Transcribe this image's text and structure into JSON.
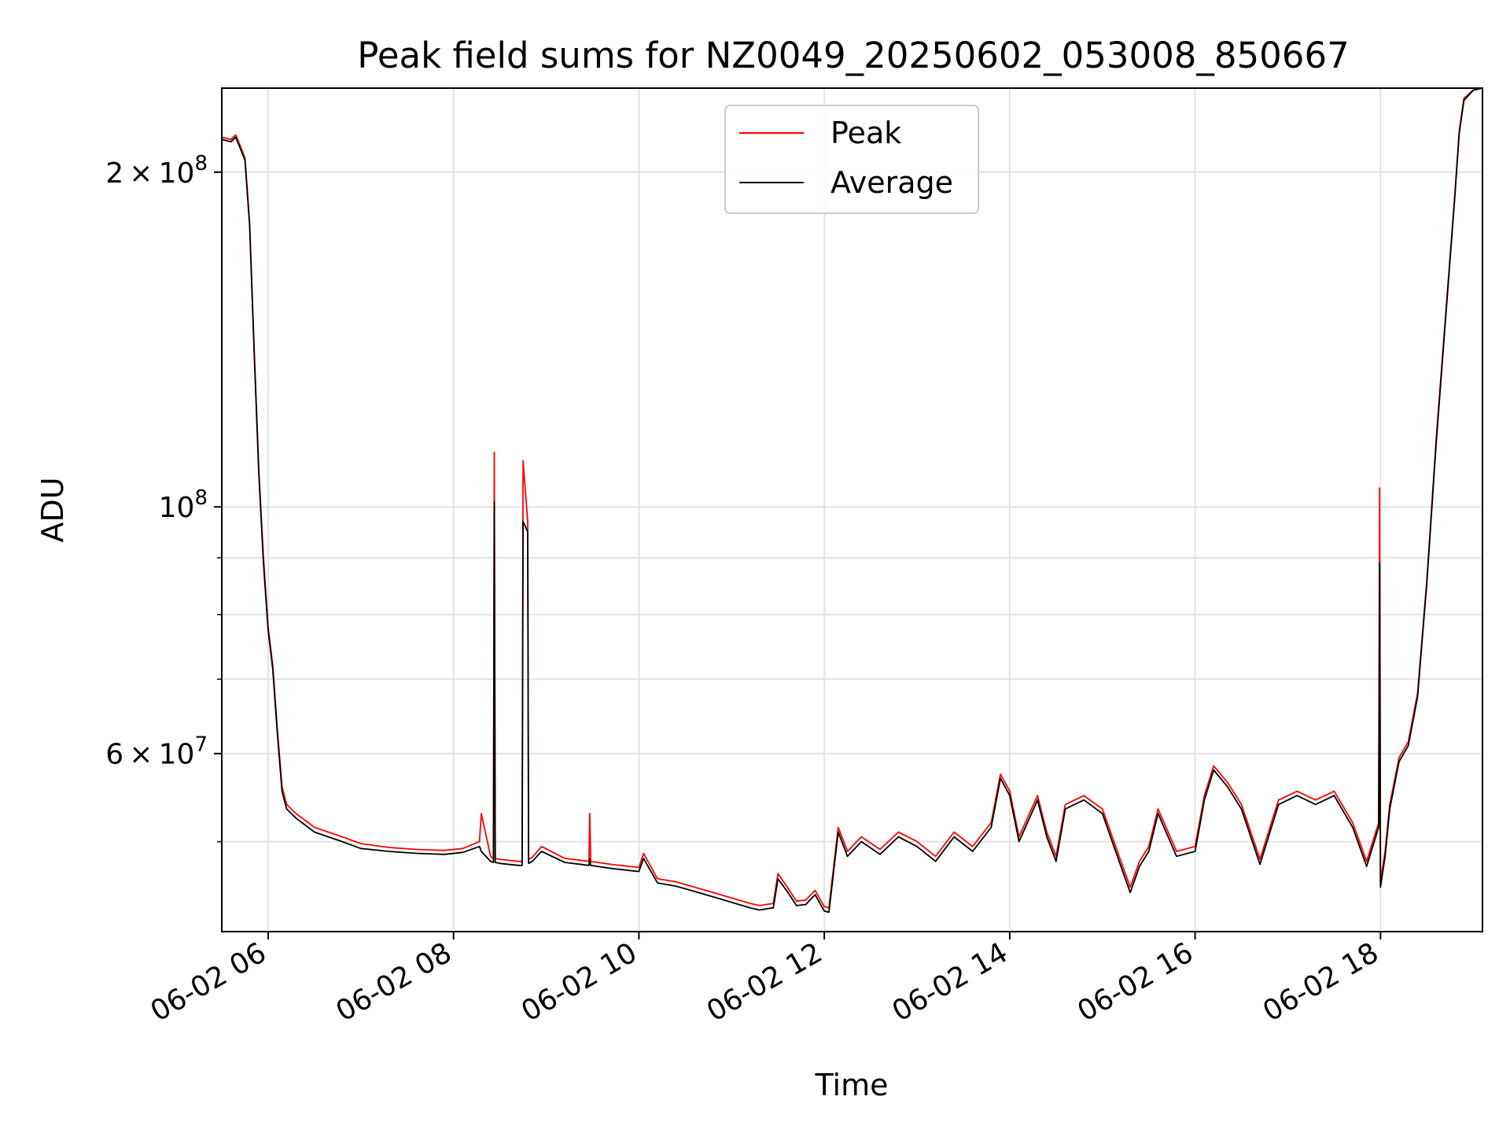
{
  "chart_data": {
    "type": "line",
    "title": "Peak field sums for NZ0049_20250602_053008_850667",
    "xlabel": "Time",
    "ylabel": "ADU",
    "x_unit": "hours (2025-06-02)",
    "xlim": [
      5.5,
      19.1
    ],
    "ylim": [
      41500000,
      238000000
    ],
    "yscale": "log",
    "grid": true,
    "legend_position": "top-center",
    "x_tick_values": [
      6,
      8,
      10,
      12,
      14,
      16,
      18
    ],
    "x_tick_labels": [
      "06-02 06",
      "06-02 08",
      "06-02 10",
      "06-02 12",
      "06-02 14",
      "06-02 16",
      "06-02 18"
    ],
    "y_major_ticks": [
      {
        "value": 200000000,
        "mantissa": "2",
        "exponent": "8"
      },
      {
        "value": 100000000,
        "mantissa": "",
        "exponent": "8"
      },
      {
        "value": 60000000,
        "mantissa": "6",
        "exponent": "7"
      }
    ],
    "y_minor_ticks": [
      50000000,
      70000000,
      80000000,
      90000000
    ],
    "series": [
      {
        "name": "Peak",
        "color": "#ff0000",
        "x": [
          5.5,
          5.6,
          5.65,
          5.7,
          5.75,
          5.8,
          5.85,
          5.9,
          5.95,
          6.0,
          6.05,
          6.1,
          6.15,
          6.2,
          6.25,
          6.3,
          6.5,
          6.8,
          7.0,
          7.3,
          7.6,
          7.9,
          8.1,
          8.28,
          8.3,
          8.4,
          8.43,
          8.44,
          8.45,
          8.5,
          8.7,
          8.74,
          8.75,
          8.8,
          8.81,
          8.85,
          8.95,
          9.2,
          9.46,
          9.47,
          9.48,
          9.7,
          9.9,
          10.0,
          10.05,
          10.2,
          10.4,
          10.6,
          10.8,
          11.0,
          11.2,
          11.3,
          11.45,
          11.5,
          11.6,
          11.7,
          11.8,
          11.9,
          12.0,
          12.05,
          12.15,
          12.25,
          12.4,
          12.6,
          12.8,
          13.0,
          13.2,
          13.4,
          13.6,
          13.8,
          13.9,
          14.0,
          14.1,
          14.3,
          14.4,
          14.5,
          14.6,
          14.8,
          15.0,
          15.2,
          15.3,
          15.4,
          15.5,
          15.6,
          15.8,
          16.0,
          16.1,
          16.2,
          16.35,
          16.5,
          16.7,
          16.9,
          17.1,
          17.3,
          17.5,
          17.7,
          17.85,
          17.98,
          17.99,
          18.0,
          18.05,
          18.1,
          18.2,
          18.3,
          18.4,
          18.5,
          18.6,
          18.7,
          18.8,
          18.85,
          18.9,
          19.0,
          19.1
        ],
        "y": [
          215000000,
          214000000,
          216000000,
          211000000,
          206000000,
          180000000,
          138000000,
          108000000,
          90000000,
          78000000,
          72000000,
          63000000,
          56000000,
          54000000,
          53500000,
          53000000,
          51500000,
          50500000,
          49800000,
          49400000,
          49200000,
          49100000,
          49300000,
          50000000,
          53000000,
          48500000,
          48300000,
          112000000,
          48300000,
          48200000,
          48000000,
          48000000,
          110000000,
          97000000,
          48200000,
          48400000,
          49500000,
          48300000,
          48000000,
          53000000,
          48000000,
          47700000,
          47500000,
          47400000,
          48800000,
          46300000,
          46000000,
          45500000,
          45000000,
          44500000,
          44000000,
          43800000,
          44000000,
          46800000,
          45500000,
          44200000,
          44300000,
          45200000,
          43700000,
          43600000,
          51500000,
          49000000,
          50500000,
          49200000,
          51000000,
          50000000,
          48500000,
          51000000,
          49500000,
          52000000,
          57500000,
          55500000,
          50500000,
          55000000,
          51000000,
          48500000,
          54000000,
          55000000,
          53500000,
          48000000,
          45500000,
          48000000,
          49500000,
          53500000,
          49000000,
          49500000,
          55000000,
          58500000,
          56500000,
          54000000,
          48200000,
          54500000,
          55500000,
          54500000,
          55500000,
          52000000,
          48000000,
          52000000,
          104000000,
          46000000,
          49000000,
          54000000,
          59500000,
          61500000,
          68000000,
          86000000,
          115000000,
          148000000,
          190000000,
          218000000,
          233000000,
          237000000,
          238000000
        ]
      },
      {
        "name": "Average",
        "color": "#000000",
        "x": [
          5.5,
          5.6,
          5.65,
          5.7,
          5.75,
          5.8,
          5.85,
          5.9,
          5.95,
          6.0,
          6.05,
          6.1,
          6.15,
          6.2,
          6.25,
          6.3,
          6.5,
          6.8,
          7.0,
          7.3,
          7.6,
          7.9,
          8.1,
          8.28,
          8.3,
          8.4,
          8.43,
          8.44,
          8.45,
          8.5,
          8.7,
          8.74,
          8.75,
          8.8,
          8.81,
          8.85,
          8.95,
          9.2,
          9.46,
          9.47,
          9.48,
          9.7,
          9.9,
          10.0,
          10.05,
          10.2,
          10.4,
          10.6,
          10.8,
          11.0,
          11.2,
          11.3,
          11.45,
          11.5,
          11.6,
          11.7,
          11.8,
          11.9,
          12.0,
          12.05,
          12.15,
          12.25,
          12.4,
          12.6,
          12.8,
          13.0,
          13.2,
          13.4,
          13.6,
          13.8,
          13.9,
          14.0,
          14.1,
          14.3,
          14.4,
          14.5,
          14.6,
          14.8,
          15.0,
          15.2,
          15.3,
          15.4,
          15.5,
          15.6,
          15.8,
          16.0,
          16.1,
          16.2,
          16.35,
          16.5,
          16.7,
          16.9,
          17.1,
          17.3,
          17.5,
          17.7,
          17.85,
          17.98,
          17.99,
          18.0,
          18.05,
          18.1,
          18.2,
          18.3,
          18.4,
          18.5,
          18.6,
          18.7,
          18.8,
          18.85,
          18.9,
          19.0,
          19.1
        ],
        "y": [
          214000000,
          213000000,
          215000000,
          210000000,
          205000000,
          179000000,
          137000000,
          107000000,
          89000000,
          77500000,
          71500000,
          62500000,
          55500000,
          53500000,
          53000000,
          52500000,
          51000000,
          50000000,
          49300000,
          49000000,
          48800000,
          48700000,
          48900000,
          49500000,
          49000000,
          48000000,
          47900000,
          101000000,
          47900000,
          47800000,
          47600000,
          47600000,
          97000000,
          95000000,
          47800000,
          48000000,
          49000000,
          47900000,
          47600000,
          48200000,
          47600000,
          47300000,
          47100000,
          47000000,
          48300000,
          45900000,
          45600000,
          45100000,
          44600000,
          44100000,
          43600000,
          43400000,
          43600000,
          46300000,
          45100000,
          43800000,
          43900000,
          44800000,
          43300000,
          43200000,
          51000000,
          48500000,
          50000000,
          48700000,
          50500000,
          49500000,
          48000000,
          50500000,
          49000000,
          51500000,
          57000000,
          55000000,
          50000000,
          54500000,
          50500000,
          48000000,
          53500000,
          54500000,
          53000000,
          47500000,
          45000000,
          47500000,
          49000000,
          53000000,
          48500000,
          49000000,
          54500000,
          58000000,
          56000000,
          53500000,
          47700000,
          54000000,
          55000000,
          54000000,
          55000000,
          51500000,
          47500000,
          51500000,
          89000000,
          45500000,
          48500000,
          53500000,
          59000000,
          61000000,
          67500000,
          85500000,
          114000000,
          147000000,
          189000000,
          217000000,
          232000000,
          237000000,
          238000000
        ]
      }
    ]
  }
}
